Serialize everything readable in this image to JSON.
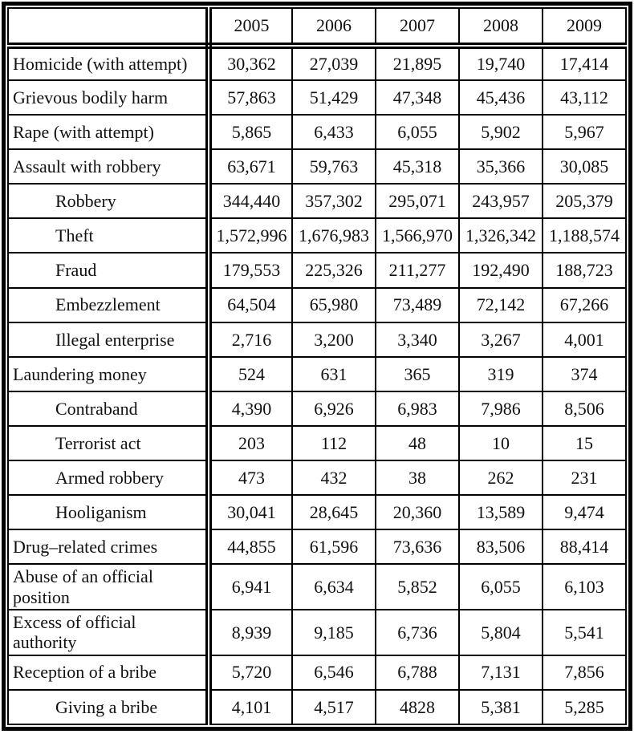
{
  "table": {
    "header": {
      "label_column": "",
      "years": [
        "2005",
        "2006",
        "2007",
        "2008",
        "2009"
      ]
    },
    "rows": [
      {
        "label": "Homicide (with attempt)",
        "indent": false,
        "values": [
          "30,362",
          "27,039",
          "21,895",
          "19,740",
          "17,414"
        ]
      },
      {
        "label": "Grievous bodily harm",
        "indent": false,
        "values": [
          "57,863",
          "51,429",
          "47,348",
          "45,436",
          "43,112"
        ]
      },
      {
        "label": "Rape (with attempt)",
        "indent": false,
        "values": [
          "5,865",
          "6,433",
          "6,055",
          "5,902",
          "5,967"
        ]
      },
      {
        "label": "Assault with robbery",
        "indent": false,
        "values": [
          "63,671",
          "59,763",
          "45,318",
          "35,366",
          "30,085"
        ]
      },
      {
        "label": "Robbery",
        "indent": true,
        "values": [
          "344,440",
          "357,302",
          "295,071",
          "243,957",
          "205,379"
        ]
      },
      {
        "label": "Theft",
        "indent": true,
        "values": [
          "1,572,996",
          "1,676,983",
          "1,566,970",
          "1,326,342",
          "1,188,574"
        ]
      },
      {
        "label": "Fraud",
        "indent": true,
        "values": [
          "179,553",
          "225,326",
          "211,277",
          "192,490",
          "188,723"
        ]
      },
      {
        "label": "Embezzlement",
        "indent": true,
        "values": [
          "64,504",
          "65,980",
          "73,489",
          "72,142",
          "67,266"
        ]
      },
      {
        "label": "Illegal enterprise",
        "indent": true,
        "values": [
          "2,716",
          "3,200",
          "3,340",
          "3,267",
          "4,001"
        ]
      },
      {
        "label": "Laundering money",
        "indent": false,
        "values": [
          "524",
          "631",
          "365",
          "319",
          "374"
        ]
      },
      {
        "label": "Contraband",
        "indent": true,
        "values": [
          "4,390",
          "6,926",
          "6,983",
          "7,986",
          "8,506"
        ]
      },
      {
        "label": "Terrorist act",
        "indent": true,
        "values": [
          "203",
          "112",
          "48",
          "10",
          "15"
        ]
      },
      {
        "label": "Armed robbery",
        "indent": true,
        "values": [
          "473",
          "432",
          "38",
          "262",
          "231"
        ]
      },
      {
        "label": "Hooliganism",
        "indent": true,
        "values": [
          "30,041",
          "28,645",
          "20,360",
          "13,589",
          "9,474"
        ]
      },
      {
        "label": "Drug–related crimes",
        "indent": false,
        "values": [
          "44,855",
          "61,596",
          "73,636",
          "83,506",
          "88,414"
        ]
      },
      {
        "label": "Abuse of an official position",
        "indent": false,
        "values": [
          "6,941",
          "6,634",
          "5,852",
          "6,055",
          "6,103"
        ]
      },
      {
        "label": "Excess of official authority",
        "indent": false,
        "values": [
          "8,939",
          "9,185",
          "6,736",
          "5,804",
          "5,541"
        ]
      },
      {
        "label": "Reception of a bribe",
        "indent": false,
        "values": [
          "5,720",
          "6,546",
          "6,788",
          "7,131",
          "7,856"
        ]
      },
      {
        "label": "Giving a bribe",
        "indent": true,
        "values": [
          "4,101",
          "4,517",
          "4828",
          "5,381",
          "5,285"
        ]
      }
    ]
  }
}
